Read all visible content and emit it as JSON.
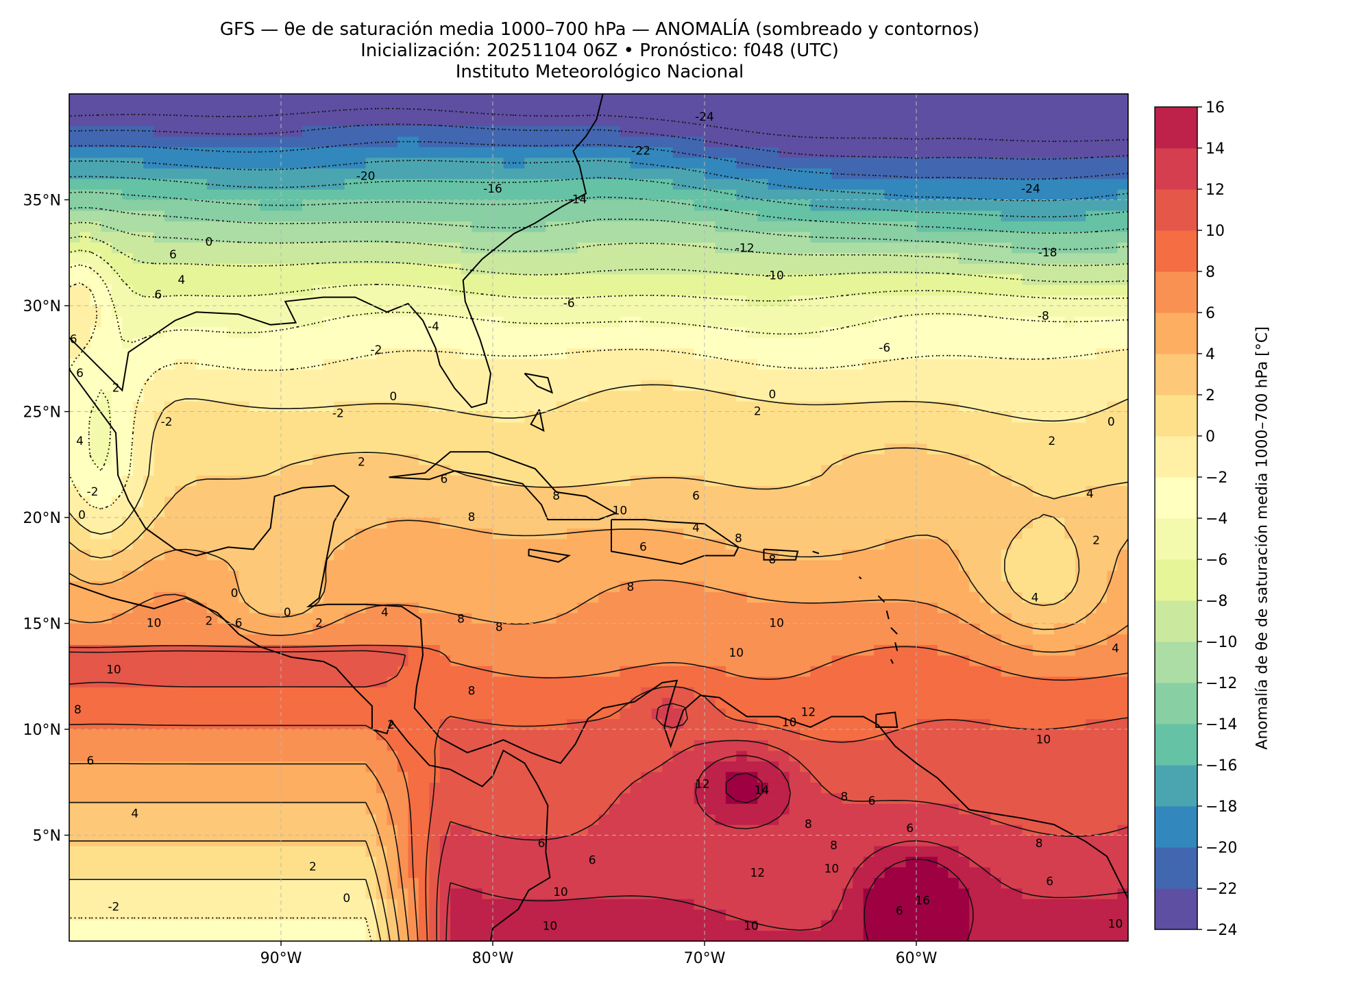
{
  "title": {
    "line1": "GFS — θe de saturación media 1000–700 hPa — ANOMALÍA (sombreado y contornos)",
    "line2": "Inicialización: 20251104 06Z   •   Pronóstico: f048 (UTC)",
    "line3": "Instituto Meteorológico Nacional"
  },
  "map": {
    "region": "Golfo de México, Caribe y Atlántico tropical",
    "extent": {
      "lon_min": -100,
      "lon_max": -50,
      "lat_min": 0,
      "lat_max": 40
    },
    "lon_ticks": [
      {
        "value": -90,
        "label": "90°W"
      },
      {
        "value": -80,
        "label": "80°W"
      },
      {
        "value": -70,
        "label": "70°W"
      },
      {
        "value": -60,
        "label": "60°W"
      }
    ],
    "lat_ticks": [
      {
        "value": 35,
        "label": "35°N"
      },
      {
        "value": 30,
        "label": "30°N"
      },
      {
        "value": 25,
        "label": "25°N"
      },
      {
        "value": 20,
        "label": "20°N"
      },
      {
        "value": 15,
        "label": "15°N"
      },
      {
        "value": 10,
        "label": "10°N"
      },
      {
        "value": 5,
        "label": "5°N"
      }
    ],
    "gridlines": "dashed gray",
    "contour_labels": [
      {
        "text": "-24",
        "lon": -70,
        "lat": 38.9
      },
      {
        "text": "-22",
        "lon": -73,
        "lat": 37.3
      },
      {
        "text": "-20",
        "lon": -86,
        "lat": 36.1
      },
      {
        "text": "-16",
        "lon": -80,
        "lat": 35.5
      },
      {
        "text": "-14",
        "lon": -76,
        "lat": 35.0
      },
      {
        "text": "-24",
        "lon": -54.6,
        "lat": 35.5
      },
      {
        "text": "-18",
        "lon": -53.8,
        "lat": 32.5
      },
      {
        "text": "-12",
        "lon": -68.1,
        "lat": 32.7
      },
      {
        "text": "-10",
        "lon": -66.7,
        "lat": 31.4
      },
      {
        "text": "-8",
        "lon": -54.0,
        "lat": 29.5
      },
      {
        "text": "-6",
        "lon": -76.4,
        "lat": 30.1
      },
      {
        "text": "-6",
        "lon": -61.5,
        "lat": 28.0
      },
      {
        "text": "-4",
        "lon": -82.8,
        "lat": 29.0
      },
      {
        "text": "-2",
        "lon": -85.5,
        "lat": 27.9
      },
      {
        "text": "0",
        "lon": -84.7,
        "lat": 25.7
      },
      {
        "text": "-2",
        "lon": -87.3,
        "lat": 24.9
      },
      {
        "text": "-2",
        "lon": -95.4,
        "lat": 24.5
      },
      {
        "text": "0",
        "lon": -66.8,
        "lat": 25.8
      },
      {
        "text": "2",
        "lon": -67.5,
        "lat": 25.0
      },
      {
        "text": "0",
        "lon": -50.8,
        "lat": 24.5
      },
      {
        "text": "2",
        "lon": -53.6,
        "lat": 23.6
      },
      {
        "text": "2",
        "lon": -86.2,
        "lat": 22.6
      },
      {
        "text": "6",
        "lon": -82.3,
        "lat": 21.8
      },
      {
        "text": "8",
        "lon": -77.0,
        "lat": 21.0
      },
      {
        "text": "8",
        "lon": -81.0,
        "lat": 20.0
      },
      {
        "text": "10",
        "lon": -74.0,
        "lat": 20.3
      },
      {
        "text": "6",
        "lon": -70.4,
        "lat": 21.0
      },
      {
        "text": "4",
        "lon": -70.4,
        "lat": 19.5
      },
      {
        "text": "6",
        "lon": -72.9,
        "lat": 18.6
      },
      {
        "text": "8",
        "lon": -68.4,
        "lat": 19.0
      },
      {
        "text": "8",
        "lon": -66.8,
        "lat": 18.0
      },
      {
        "text": "8",
        "lon": -73.5,
        "lat": 16.7
      },
      {
        "text": "4",
        "lon": -51.8,
        "lat": 21.1
      },
      {
        "text": "2",
        "lon": -51.5,
        "lat": 18.9
      },
      {
        "text": "4",
        "lon": -54.4,
        "lat": 16.2
      },
      {
        "text": "10",
        "lon": -66.6,
        "lat": 15.0
      },
      {
        "text": "10",
        "lon": -68.5,
        "lat": 13.6
      },
      {
        "text": "4",
        "lon": -50.6,
        "lat": 13.8
      },
      {
        "text": "0",
        "lon": -92.2,
        "lat": 16.4
      },
      {
        "text": "0",
        "lon": -89.7,
        "lat": 15.5
      },
      {
        "text": "2",
        "lon": -88.2,
        "lat": 15.0
      },
      {
        "text": "6",
        "lon": -92.0,
        "lat": 15.0
      },
      {
        "text": "10",
        "lon": -96.0,
        "lat": 15.0
      },
      {
        "text": "2",
        "lon": -93.4,
        "lat": 15.1
      },
      {
        "text": "4",
        "lon": -85.1,
        "lat": 15.5
      },
      {
        "text": "8",
        "lon": -81.5,
        "lat": 15.2
      },
      {
        "text": "8",
        "lon": -79.7,
        "lat": 14.8
      },
      {
        "text": "10",
        "lon": -97.9,
        "lat": 12.8
      },
      {
        "text": "8",
        "lon": -81.0,
        "lat": 11.8
      },
      {
        "text": "2",
        "lon": -84.8,
        "lat": 10.2
      },
      {
        "text": "8",
        "lon": -99.6,
        "lat": 10.9
      },
      {
        "text": "6",
        "lon": -99.0,
        "lat": 8.5
      },
      {
        "text": "4",
        "lon": -96.9,
        "lat": 6.0
      },
      {
        "text": "2",
        "lon": -88.5,
        "lat": 3.5
      },
      {
        "text": "0",
        "lon": -86.9,
        "lat": 2.0
      },
      {
        "text": "-2",
        "lon": -97.9,
        "lat": 1.6
      },
      {
        "text": "12",
        "lon": -65.1,
        "lat": 10.8
      },
      {
        "text": "10",
        "lon": -66.0,
        "lat": 10.3
      },
      {
        "text": "10",
        "lon": -54.0,
        "lat": 9.5
      },
      {
        "text": "12",
        "lon": -70.1,
        "lat": 7.4
      },
      {
        "text": "14",
        "lon": -67.3,
        "lat": 7.1
      },
      {
        "text": "8",
        "lon": -63.4,
        "lat": 6.8
      },
      {
        "text": "6",
        "lon": -62.1,
        "lat": 6.6
      },
      {
        "text": "6",
        "lon": -60.3,
        "lat": 5.3
      },
      {
        "text": "8",
        "lon": -65.1,
        "lat": 5.5
      },
      {
        "text": "8",
        "lon": -63.9,
        "lat": 4.5
      },
      {
        "text": "10",
        "lon": -64.0,
        "lat": 3.4
      },
      {
        "text": "12",
        "lon": -67.5,
        "lat": 3.2
      },
      {
        "text": "16",
        "lon": -59.7,
        "lat": 1.9
      },
      {
        "text": "6",
        "lon": -60.8,
        "lat": 1.4
      },
      {
        "text": "6",
        "lon": -53.7,
        "lat": 2.8
      },
      {
        "text": "8",
        "lon": -54.2,
        "lat": 4.6
      },
      {
        "text": "10",
        "lon": -67.8,
        "lat": 0.7
      },
      {
        "text": "10",
        "lon": -50.6,
        "lat": 0.8
      },
      {
        "text": "6",
        "lon": -95.1,
        "lat": 32.4
      },
      {
        "text": "4",
        "lon": -94.7,
        "lat": 31.2
      },
      {
        "text": "6",
        "lon": -95.8,
        "lat": 30.5
      },
      {
        "text": "0",
        "lon": -93.4,
        "lat": 33.0
      },
      {
        "text": "2",
        "lon": -97.8,
        "lat": 26.1
      },
      {
        "text": "6",
        "lon": -99.5,
        "lat": 26.8
      },
      {
        "text": "6",
        "lon": -99.8,
        "lat": 28.4
      },
      {
        "text": "4",
        "lon": -99.5,
        "lat": 23.6
      },
      {
        "text": "-2",
        "lon": -98.9,
        "lat": 21.2
      },
      {
        "text": "0",
        "lon": -99.4,
        "lat": 20.1
      },
      {
        "text": "6",
        "lon": -77.7,
        "lat": 4.6
      },
      {
        "text": "10",
        "lon": -76.8,
        "lat": 2.3
      },
      {
        "text": "6",
        "lon": -75.3,
        "lat": 3.8
      },
      {
        "text": "10",
        "lon": -77.3,
        "lat": 0.7
      }
    ]
  },
  "colorbar": {
    "title": "Anomalía de θe de saturación media 1000–700 hPa [°C]",
    "min": -24,
    "max": 16,
    "step": 2,
    "tick_labels": [
      "16",
      "14",
      "12",
      "10",
      "8",
      "6",
      "4",
      "2",
      "0",
      "−2",
      "−4",
      "−6",
      "−8",
      "−10",
      "−12",
      "−14",
      "−16",
      "−18",
      "−20",
      "−22",
      "−24"
    ],
    "colors": [
      "#5e4fa2",
      "#4267b1",
      "#3288bd",
      "#4ba5b1",
      "#66c2a5",
      "#88cfa4",
      "#abdda4",
      "#cbe99e",
      "#e6f598",
      "#f4faad",
      "#ffffbf",
      "#fff0a6",
      "#fee08b",
      "#fdc877",
      "#fdae61",
      "#f99153",
      "#f46d43",
      "#e55749",
      "#d53e4f",
      "#be2149",
      "#9e0142"
    ]
  }
}
